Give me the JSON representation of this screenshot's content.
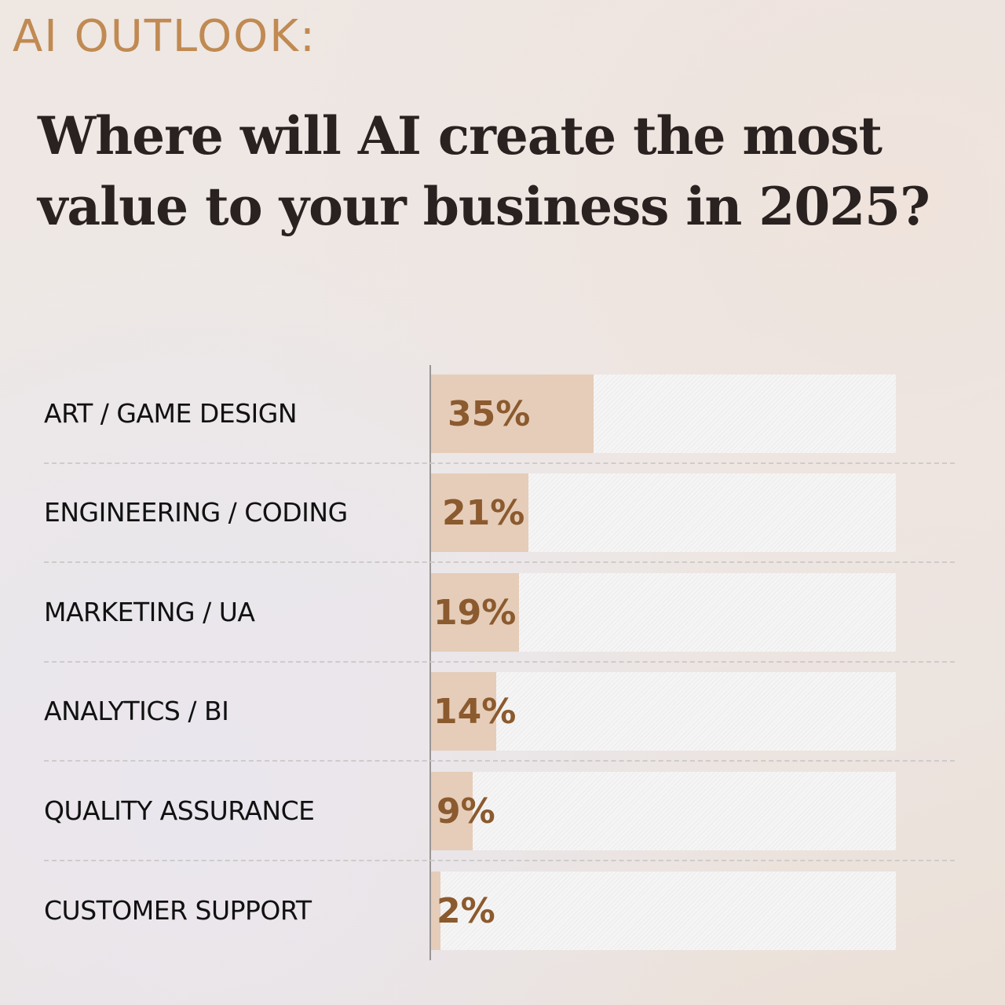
{
  "kicker": "AI OUTLOOK:",
  "title": "Where will AI create the most value to your business in 2025?",
  "chart_data": {
    "type": "bar",
    "orientation": "horizontal",
    "title": "Where will AI create the most value to your business in 2025?",
    "categories": [
      "ART / GAME DESIGN",
      "ENGINEERING / CODING",
      "MARKETING / UA",
      "ANALYTICS / BI",
      "QUALITY ASSURANCE",
      "CUSTOMER SUPPORT"
    ],
    "values": [
      35,
      21,
      19,
      14,
      9,
      2
    ],
    "labels": [
      "35%",
      "21%",
      "19%",
      "14%",
      "9%",
      "2%"
    ],
    "xlim": [
      0,
      100
    ],
    "colors": {
      "bar": "#e5cdb9",
      "value_text": "#8b5a2e",
      "accent": "#c08a52"
    }
  }
}
